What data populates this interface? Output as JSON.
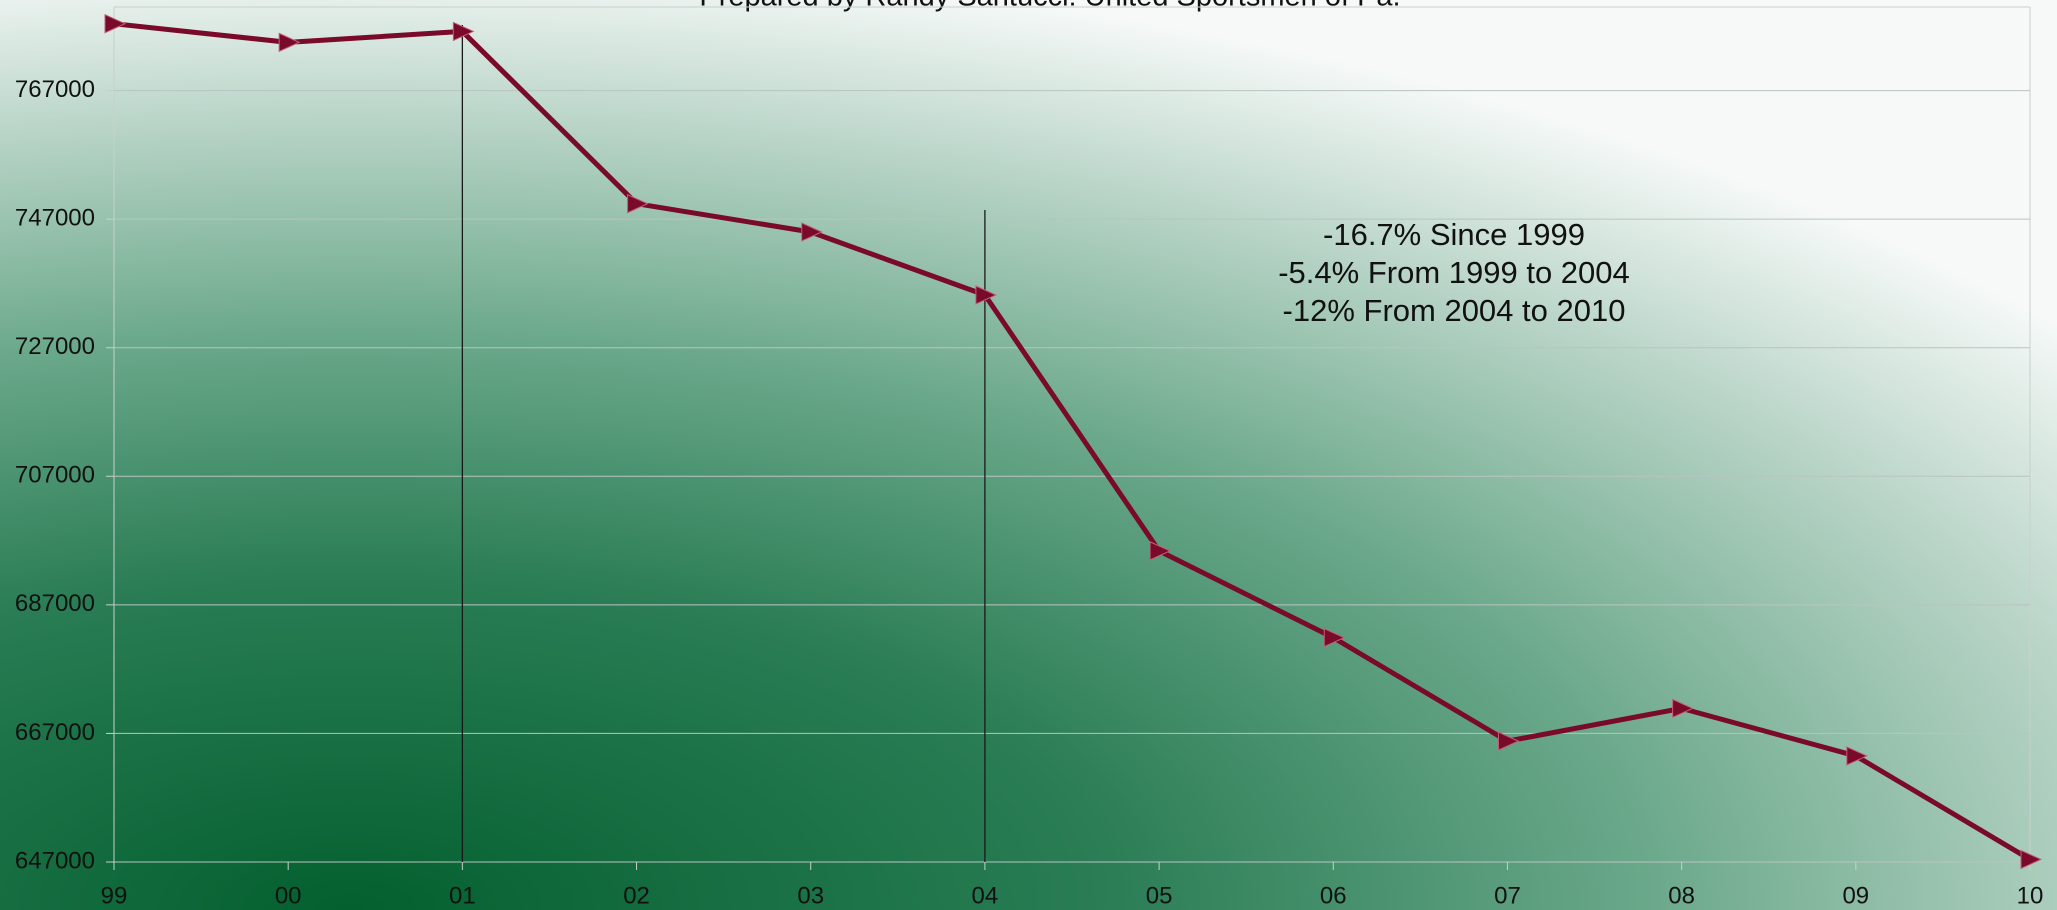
{
  "chart_data": {
    "type": "line",
    "title": "Prepared by Randy Santucci: United Sportsmen of Pa.",
    "categories": [
      "99",
      "00",
      "01",
      "02",
      "03",
      "04",
      "05",
      "06",
      "07",
      "08",
      "09",
      "10"
    ],
    "values": [
      777400,
      774500,
      776200,
      749400,
      745000,
      735200,
      695400,
      681900,
      665800,
      670900,
      663500,
      647400
    ],
    "color": "#7a0a2a",
    "ylim": [
      647000,
      780000
    ],
    "yticks": [
      647000,
      667000,
      687000,
      707000,
      727000,
      747000,
      767000
    ],
    "grid": true,
    "vlines": [
      "01",
      "04"
    ],
    "annotations": [
      "-16.7% Since 1999",
      "-5.4% From 1999 to 2004",
      "-12% From 2004 to 2010"
    ]
  }
}
